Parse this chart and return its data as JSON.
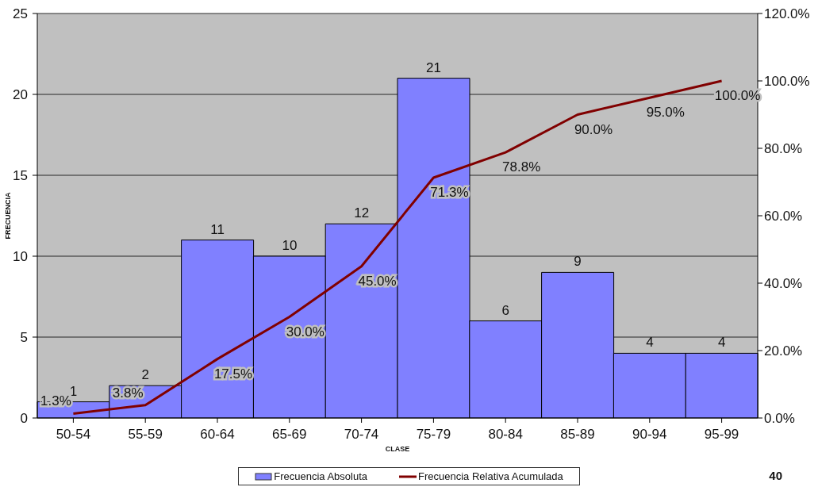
{
  "chart_data": {
    "type": "bar",
    "xlabel": "CLASE",
    "ylabel": "FRECUENCIA",
    "categories": [
      "50-54",
      "55-59",
      "60-64",
      "65-69",
      "70-74",
      "75-79",
      "80-84",
      "85-89",
      "90-94",
      "95-99"
    ],
    "series": [
      {
        "name": "Frecuencia Absoluta",
        "color": "#8080ff",
        "values": [
          1,
          2,
          11,
          10,
          12,
          21,
          6,
          9,
          4,
          4
        ],
        "value_labels": [
          "1",
          "2",
          "11",
          "10",
          "12",
          "21",
          "6",
          "9",
          "4",
          "4"
        ]
      },
      {
        "name": "Frecuencia Relativa Acumulada",
        "type": "line",
        "axis": "y2",
        "color": "#800000",
        "values": [
          1.3,
          3.8,
          17.5,
          30.0,
          45.0,
          71.3,
          78.8,
          90.0,
          95.0,
          100.0
        ],
        "value_labels": [
          "1.3%",
          "3.8%",
          "17.5%",
          "30.0%",
          "45.0%",
          "71.3%",
          "78.8%",
          "90.0%",
          "95.0%",
          "100.0%"
        ]
      }
    ],
    "ylim": [
      0,
      25
    ],
    "yticks": [
      0,
      5,
      10,
      15,
      20,
      25
    ],
    "y2lim": [
      0,
      120
    ],
    "y2ticks": [
      {
        "value": 0,
        "label": "0.0%"
      },
      {
        "value": 20,
        "label": "20.0%"
      },
      {
        "value": 40,
        "label": "40.0%"
      },
      {
        "value": 60,
        "label": "60.0%"
      },
      {
        "value": 80,
        "label": "80.0%"
      },
      {
        "value": 100,
        "label": "100.0%"
      },
      {
        "value": 120,
        "label": "120.0%"
      }
    ],
    "grid": "y",
    "legend": "bottom",
    "marker": "none",
    "annotations": [
      "40"
    ]
  }
}
